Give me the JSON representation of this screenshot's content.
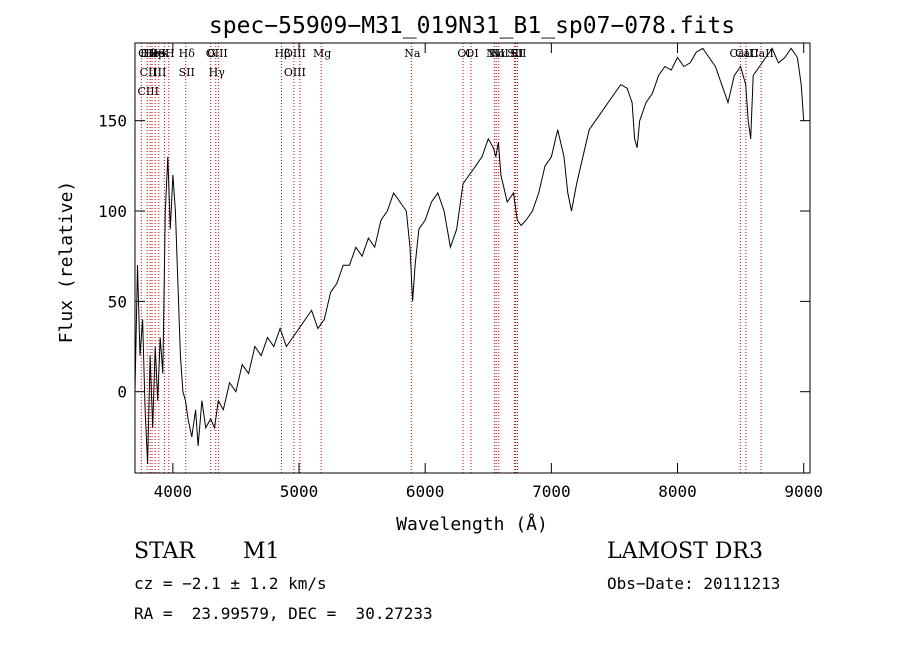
{
  "chart_data": {
    "type": "line",
    "title": "spec−55909−M31_019N31_B1_sp07−078.fits",
    "xlabel": "Wavelength (Å)",
    "ylabel": "Flux (relative)",
    "xlim": [
      3700,
      9050
    ],
    "ylim": [
      -45,
      193
    ],
    "xticks": [
      4000,
      5000,
      6000,
      7000,
      8000,
      9000
    ],
    "yticks": [
      0,
      50,
      100,
      150
    ],
    "series": [
      {
        "name": "spectrum",
        "x": [
          3700,
          3720,
          3740,
          3760,
          3780,
          3800,
          3820,
          3840,
          3860,
          3880,
          3900,
          3920,
          3940,
          3960,
          3980,
          4000,
          4020,
          4040,
          4060,
          4080,
          4100,
          4120,
          4150,
          4180,
          4200,
          4230,
          4260,
          4300,
          4330,
          4360,
          4400,
          4450,
          4500,
          4550,
          4600,
          4650,
          4700,
          4750,
          4800,
          4850,
          4900,
          4950,
          5000,
          5050,
          5100,
          5150,
          5200,
          5250,
          5300,
          5350,
          5400,
          5450,
          5500,
          5550,
          5600,
          5650,
          5700,
          5750,
          5800,
          5850,
          5880,
          5900,
          5920,
          5950,
          6000,
          6050,
          6100,
          6150,
          6200,
          6250,
          6300,
          6350,
          6400,
          6450,
          6500,
          6540,
          6560,
          6580,
          6600,
          6650,
          6700,
          6730,
          6760,
          6800,
          6850,
          6900,
          6950,
          7000,
          7050,
          7100,
          7130,
          7160,
          7200,
          7250,
          7300,
          7350,
          7400,
          7450,
          7500,
          7550,
          7600,
          7640,
          7660,
          7680,
          7700,
          7750,
          7800,
          7850,
          7900,
          7950,
          8000,
          8050,
          8100,
          8150,
          8200,
          8250,
          8300,
          8350,
          8400,
          8450,
          8500,
          8540,
          8560,
          8580,
          8600,
          8650,
          8700,
          8750,
          8800,
          8850,
          8900,
          8950,
          8980,
          9000
        ],
        "values": [
          0,
          70,
          20,
          40,
          -10,
          -40,
          20,
          -20,
          25,
          -5,
          30,
          10,
          100,
          130,
          90,
          120,
          100,
          60,
          20,
          0,
          -5,
          -15,
          -25,
          -10,
          -30,
          -5,
          -20,
          -15,
          -20,
          -5,
          -10,
          5,
          0,
          15,
          10,
          25,
          20,
          30,
          25,
          35,
          25,
          30,
          35,
          40,
          45,
          35,
          40,
          55,
          60,
          70,
          70,
          80,
          75,
          85,
          80,
          95,
          100,
          110,
          105,
          100,
          80,
          50,
          70,
          90,
          95,
          105,
          110,
          100,
          80,
          90,
          115,
          120,
          125,
          130,
          140,
          135,
          130,
          138,
          120,
          105,
          110,
          95,
          92,
          95,
          100,
          110,
          125,
          130,
          145,
          130,
          110,
          100,
          115,
          130,
          145,
          150,
          155,
          160,
          165,
          170,
          168,
          160,
          140,
          135,
          150,
          160,
          165,
          175,
          180,
          178,
          185,
          180,
          182,
          188,
          190,
          185,
          180,
          170,
          160,
          175,
          180,
          170,
          150,
          140,
          175,
          180,
          185,
          190,
          182,
          185,
          190,
          185,
          170,
          150
        ],
        "color": "#000000"
      }
    ],
    "lines": [
      {
        "x": 3750,
        "labels": [
          [
            "C"
          ]
        ]
      },
      {
        "x": 3797,
        "labels": [
          [
            "Hθ"
          ],
          [
            "CII"
          ],
          [
            "CIII"
          ]
        ]
      },
      {
        "x": 3820,
        "labels": [
          [
            "He"
          ]
        ]
      },
      {
        "x": 3835,
        "labels": [
          [
            "Hη"
          ]
        ]
      },
      {
        "x": 3860,
        "labels": [
          [
            "He"
          ]
        ]
      },
      {
        "x": 3889,
        "labels": [
          [
            "IS"
          ],
          [
            "III"
          ]
        ]
      },
      {
        "x": 3933,
        "labels": [
          [
            "K"
          ]
        ]
      },
      {
        "x": 3968,
        "labels": [
          [
            "H"
          ]
        ]
      },
      {
        "x": 4102,
        "labels": [
          [
            "Hδ"
          ],
          [
            "SII"
          ]
        ]
      },
      {
        "x": 4300,
        "labels": [
          [
            "G"
          ]
        ]
      },
      {
        "x": 4340,
        "labels": [
          [
            "OIII"
          ],
          [
            "Hγ"
          ]
        ]
      },
      {
        "x": 4363,
        "labels": []
      },
      {
        "x": 4861,
        "labels": [
          [
            "Hβ"
          ]
        ]
      },
      {
        "x": 4959,
        "labels": [
          [
            "OIII"
          ],
          [
            "OIII"
          ]
        ]
      },
      {
        "x": 5007,
        "labels": []
      },
      {
        "x": 5175,
        "labels": [
          [
            "Mg"
          ]
        ]
      },
      {
        "x": 5890,
        "labels": [
          [
            "Na"
          ]
        ]
      },
      {
        "x": 6300,
        "labels": [
          [
            "OI"
          ]
        ]
      },
      {
        "x": 6363,
        "labels": [
          [
            "OI"
          ]
        ]
      },
      {
        "x": 6548,
        "labels": [
          [
            "NII"
          ]
        ]
      },
      {
        "x": 6563,
        "labels": [
          [
            "Hα"
          ]
        ]
      },
      {
        "x": 6583,
        "labels": [
          [
            "NII"
          ]
        ]
      },
      {
        "x": 6707,
        "labels": [
          [
            "SII"
          ]
        ]
      },
      {
        "x": 6716,
        "labels": [
          [
            "Li"
          ]
        ]
      },
      {
        "x": 6731,
        "labels": [
          [
            "SII"
          ]
        ]
      },
      {
        "x": 8498,
        "labels": [
          [
            "CaII"
          ]
        ]
      },
      {
        "x": 8542,
        "labels": [
          [
            "CaII"
          ]
        ]
      },
      {
        "x": 8662,
        "labels": [
          [
            "CaII"
          ]
        ]
      }
    ]
  },
  "info": {
    "class": "STAR",
    "subclass": "M1",
    "survey": "LAMOST DR3",
    "cz": "cz = −2.1 ± 1.2 km/s",
    "obs_date": "Obs−Date: 20111213",
    "radec": "RA =  23.99579, DEC =  30.27233"
  }
}
